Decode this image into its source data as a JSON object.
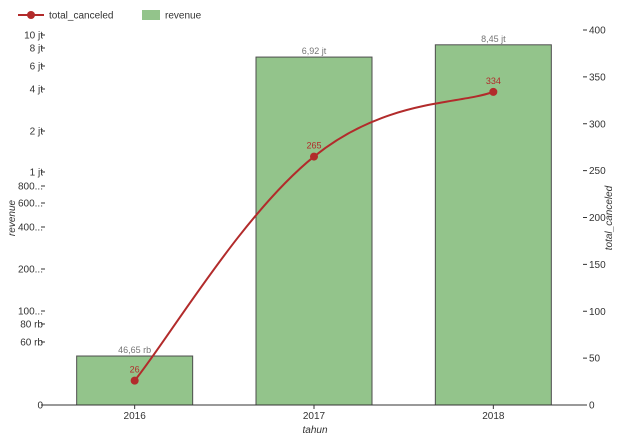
{
  "chart_data": {
    "type": "bar",
    "categories": [
      "2016",
      "2017",
      "2018"
    ],
    "series": [
      {
        "name": "revenue",
        "kind": "bar",
        "axis": "left",
        "values": [
          46650,
          6920000,
          8450000
        ],
        "value_labels": [
          "46,65 rb",
          "6,92 jt",
          "8,45 jt"
        ],
        "color": "#93c48b",
        "stroke": "#4d4d4d"
      },
      {
        "name": "total_canceled",
        "kind": "line",
        "axis": "right",
        "values": [
          26,
          265,
          334
        ],
        "value_labels": [
          "26",
          "265",
          "334"
        ],
        "color": "#b22b2b"
      }
    ],
    "xlabel": "tahun",
    "ylabel": "revenue",
    "y2label": "total_canceled",
    "y_scale": "log",
    "yticks": [
      {
        "value": 0,
        "label": "0"
      },
      {
        "value": 60000,
        "label": "60 rb"
      },
      {
        "value": 80000,
        "label": "80 rb"
      },
      {
        "value": 100000,
        "label": "100..."
      },
      {
        "value": 200000,
        "label": "200..."
      },
      {
        "value": 400000,
        "label": "400..."
      },
      {
        "value": 600000,
        "label": "600..."
      },
      {
        "value": 800000,
        "label": "800..."
      },
      {
        "value": 1000000,
        "label": "1 jt"
      },
      {
        "value": 2000000,
        "label": "2 jt"
      },
      {
        "value": 4000000,
        "label": "4 jt"
      },
      {
        "value": 6000000,
        "label": "6 jt"
      },
      {
        "value": 8000000,
        "label": "8 jt"
      },
      {
        "value": 10000000,
        "label": "10 jt"
      }
    ],
    "y2lim": [
      0,
      400
    ],
    "y2ticks": [
      0,
      50,
      100,
      150,
      200,
      250,
      300,
      350,
      400
    ],
    "legend_position": "top-left",
    "grid": false
  }
}
